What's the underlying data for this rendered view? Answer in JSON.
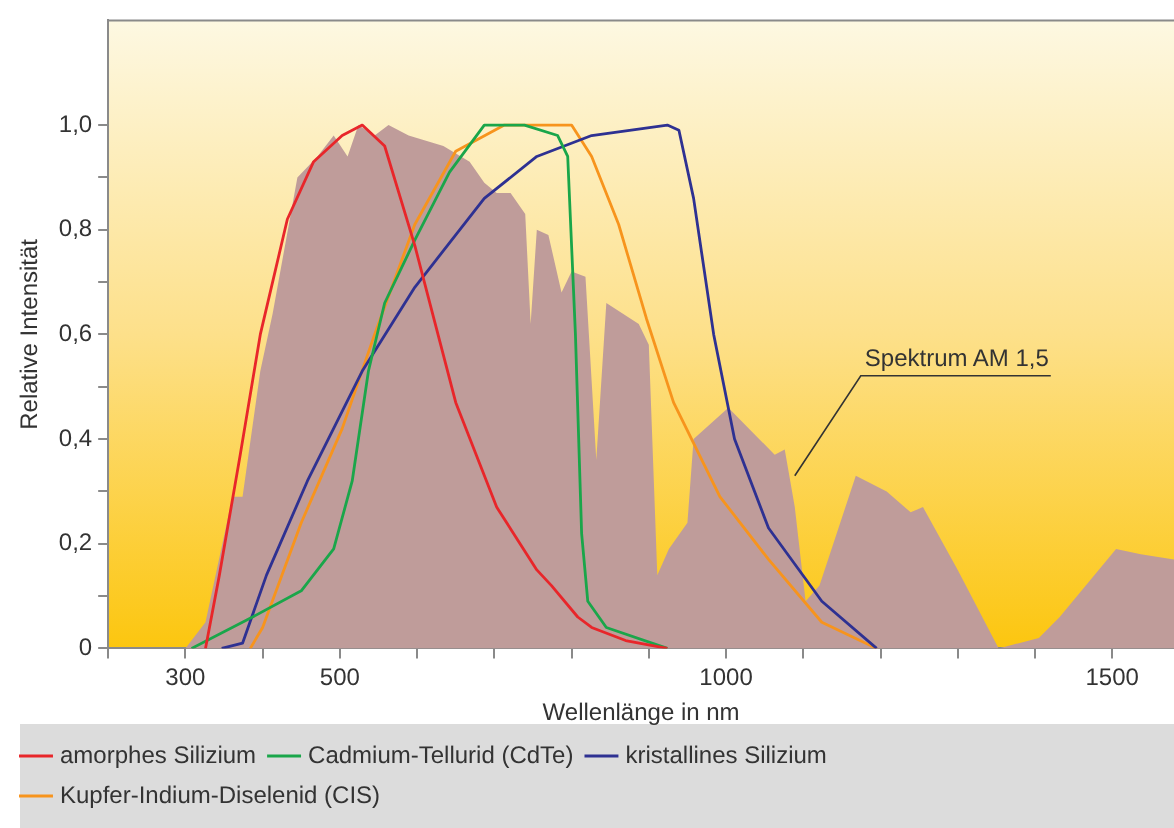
{
  "chart_data": {
    "type": "line",
    "xlabel": "Wellenlänge in nm",
    "ylabel": "Relative Intensität",
    "xlim": [
      200,
      1580
    ],
    "xticks": [
      {
        "value": 200,
        "label": null
      },
      300,
      {
        "value": 400,
        "label": null
      },
      500,
      {
        "value": 600,
        "label": null
      },
      {
        "value": 700,
        "label": null
      },
      {
        "value": 800,
        "label": null
      },
      {
        "value": 900,
        "label": null
      },
      1000,
      {
        "value": 1100,
        "label": null
      },
      {
        "value": 1200,
        "label": null
      },
      {
        "value": 1300,
        "label": null
      },
      {
        "value": 1400,
        "label": null
      },
      1500
    ],
    "ylim": [
      0,
      1.2
    ],
    "yticks": [
      {
        "value": 0,
        "label": "0"
      },
      {
        "value": 0.1,
        "label": null
      },
      {
        "value": 0.2,
        "label": "0,2"
      },
      {
        "value": 0.3,
        "label": null
      },
      {
        "value": 0.4,
        "label": "0,4"
      },
      {
        "value": 0.5,
        "label": null
      },
      {
        "value": 0.6,
        "label": "0,6"
      },
      {
        "value": 0.7,
        "label": null
      },
      {
        "value": 0.8,
        "label": "0,8"
      },
      {
        "value": 0.9,
        "label": null
      },
      {
        "value": 1.0,
        "label": "1,0"
      }
    ],
    "grid": false,
    "legend": "bottom",
    "marker": "none",
    "line_style": "solid",
    "annotations": [
      {
        "text": "Spektrum AM 1,5",
        "x": 1089,
        "y": 0.33
      }
    ],
    "series": [
      {
        "type": "area",
        "color": "#bf9c9a",
        "x": [
          300,
          326,
          361,
          374,
          397,
          413,
          445,
          471,
          492,
          510,
          524,
          545,
          563,
          589,
          634,
          668,
          687,
          703,
          721,
          740,
          747,
          755,
          770,
          787,
          800,
          818,
          832,
          845,
          887,
          900,
          911,
          926,
          950,
          958,
          1003,
          1063,
          1076,
          1089,
          1103,
          1121,
          1168,
          1208,
          1239,
          1255,
          1300,
          1353,
          1405,
          1432,
          1505,
          1537,
          1580
        ],
        "values": [
          0,
          0.05,
          0.29,
          0.29,
          0.53,
          0.64,
          0.9,
          0.94,
          0.98,
          0.94,
          1.0,
          0.98,
          1.0,
          0.98,
          0.96,
          0.93,
          0.89,
          0.87,
          0.87,
          0.83,
          0.62,
          0.8,
          0.79,
          0.68,
          0.72,
          0.71,
          0.36,
          0.66,
          0.62,
          0.58,
          0.14,
          0.19,
          0.24,
          0.4,
          0.46,
          0.37,
          0.38,
          0.27,
          0.09,
          0.12,
          0.33,
          0.3,
          0.26,
          0.27,
          0.15,
          0,
          0.02,
          0.06,
          0.19,
          0.18,
          0.17
        ]
      },
      {
        "type": "line",
        "name": "amorphes Silizium",
        "color": "#e8262a",
        "x": [
          326,
          344,
          371,
          397,
          432,
          466,
          503,
          529,
          558,
          597,
          650,
          703,
          755,
          774,
          808,
          826,
          870,
          924
        ],
        "values": [
          0,
          0.14,
          0.37,
          0.6,
          0.82,
          0.93,
          0.98,
          1.0,
          0.96,
          0.77,
          0.47,
          0.27,
          0.15,
          0.12,
          0.06,
          0.04,
          0.015,
          0
        ]
      },
      {
        "type": "line",
        "name": "Cadmium-Tellurid (CdTe)",
        "color": "#1aa64a",
        "x": [
          308,
          387,
          450,
          492,
          516,
          537,
          558,
          597,
          642,
          687,
          739,
          782,
          795,
          805,
          813,
          821,
          845,
          924
        ],
        "values": [
          0,
          0.06,
          0.11,
          0.19,
          0.32,
          0.53,
          0.66,
          0.78,
          0.91,
          1.0,
          1.0,
          0.98,
          0.94,
          0.6,
          0.22,
          0.09,
          0.04,
          0
        ]
      },
      {
        "type": "line",
        "name": "kristallines Silizium",
        "color": "#2e3192",
        "x": [
          347,
          374,
          405,
          458,
          529,
          597,
          687,
          755,
          826,
          924,
          939,
          958,
          984,
          1011,
          1055,
          1124,
          1195
        ],
        "values": [
          0,
          0.01,
          0.14,
          0.32,
          0.53,
          0.69,
          0.86,
          0.94,
          0.98,
          1.0,
          0.99,
          0.86,
          0.6,
          0.4,
          0.23,
          0.09,
          0
        ]
      },
      {
        "type": "line",
        "name": "Kupfer-Indium-Diselenid (CIS)",
        "color": "#f7941d",
        "x": [
          384,
          400,
          450,
          503,
          545,
          597,
          650,
          713,
          782,
          800,
          826,
          861,
          897,
          932,
          992,
          1055,
          1124,
          1195
        ],
        "values": [
          0,
          0.04,
          0.24,
          0.42,
          0.6,
          0.81,
          0.95,
          1.0,
          1.0,
          1.0,
          0.94,
          0.81,
          0.63,
          0.47,
          0.29,
          0.17,
          0.05,
          0
        ]
      }
    ]
  }
}
